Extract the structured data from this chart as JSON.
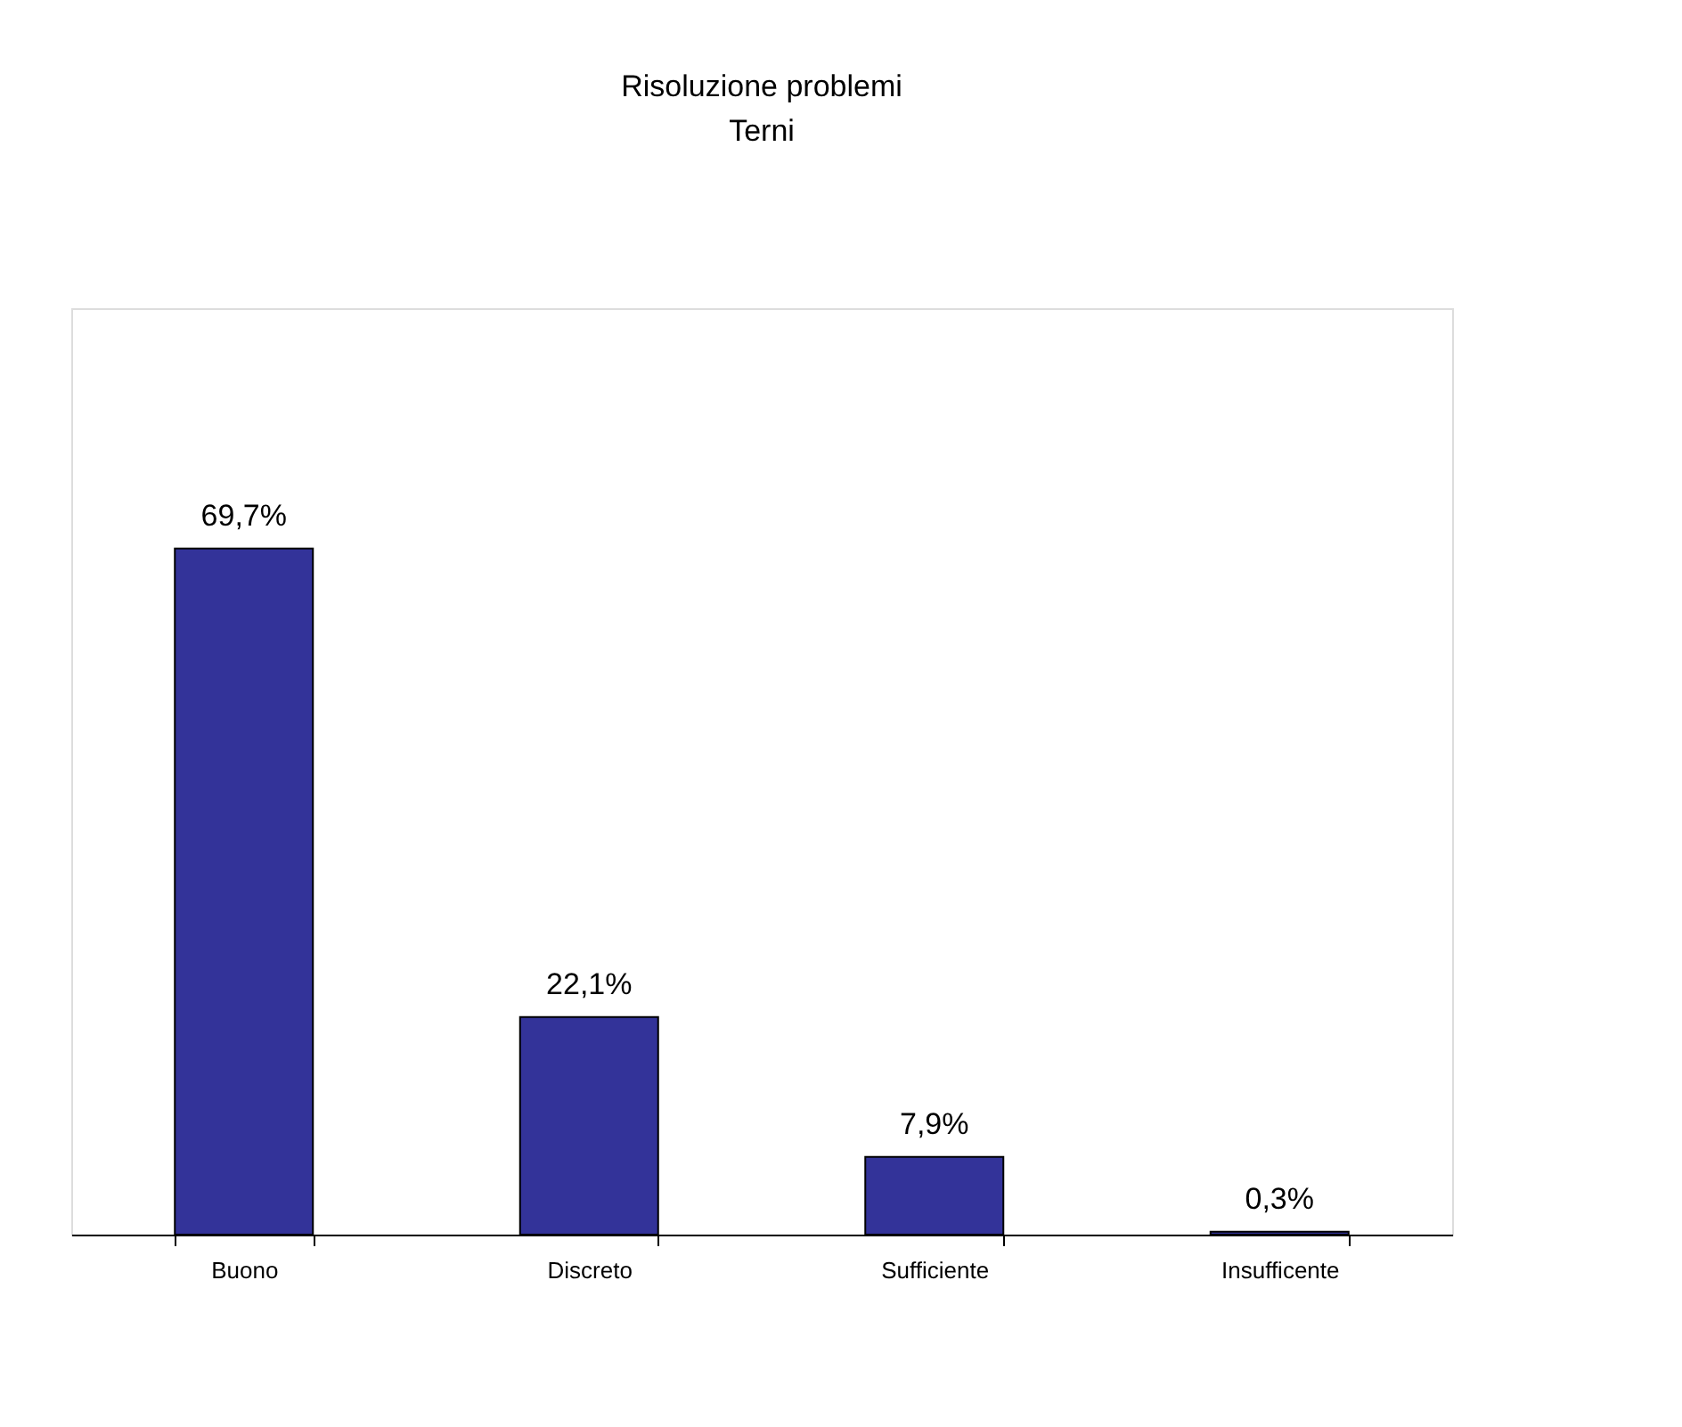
{
  "chart_data": {
    "type": "bar",
    "title": "Risoluzione problemi",
    "subtitle": "Terni",
    "categories": [
      "Buono",
      "Discreto",
      "Sufficiente",
      "Insufficente"
    ],
    "values": [
      69.7,
      22.1,
      7.9,
      0.3
    ],
    "value_labels": [
      "69,7%",
      "22,1%",
      "7,9%",
      "0,3%"
    ],
    "color": "#333399",
    "tick_labels": "x",
    "grid": false
  }
}
